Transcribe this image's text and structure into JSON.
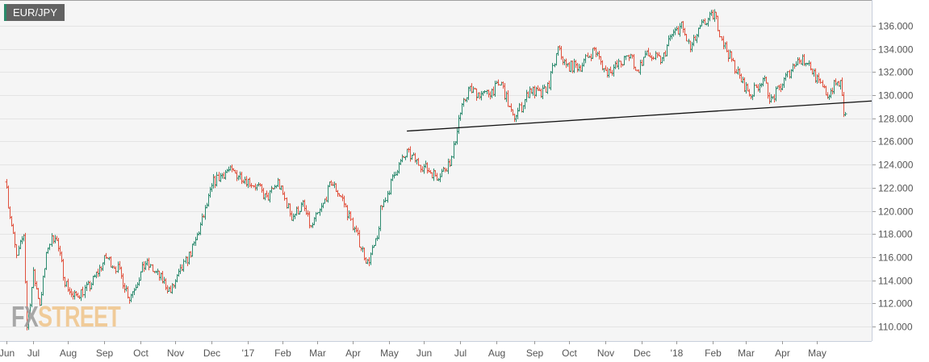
{
  "symbol_label": "EUR/JPY",
  "logo": {
    "part1": "FX",
    "part2": "STREET"
  },
  "colors": {
    "up": "#2b8a6e",
    "down": "#e0503c",
    "grid": "#e4e4e4",
    "plot_bg": "#f5f5f5",
    "trendline": "#111111"
  },
  "chart_data": {
    "type": "ohlc",
    "title": "EUR/JPY",
    "x_unit": "trading day index from Jun 1 2016",
    "xlim": [
      -4,
      523
    ],
    "ylim": [
      108.75,
      138.23
    ],
    "y_ticks": [
      "110.000",
      "112.000",
      "114.000",
      "116.000",
      "118.000",
      "120.000",
      "122.000",
      "124.000",
      "126.000",
      "128.000",
      "130.000",
      "132.000",
      "134.000",
      "136.000"
    ],
    "x_ticks": [
      {
        "label": "Jun",
        "day": 0
      },
      {
        "label": "Jul",
        "day": 16
      },
      {
        "label": "Aug",
        "day": 37
      },
      {
        "label": "Sep",
        "day": 59
      },
      {
        "label": "Oct",
        "day": 81
      },
      {
        "label": "Nov",
        "day": 102
      },
      {
        "label": "Dec",
        "day": 124
      },
      {
        "label": "'17",
        "day": 146
      },
      {
        "label": "Feb",
        "day": 167
      },
      {
        "label": "Mar",
        "day": 188
      },
      {
        "label": "Apr",
        "day": 209
      },
      {
        "label": "May",
        "day": 231
      },
      {
        "label": "Jun",
        "day": 252
      },
      {
        "label": "Jul",
        "day": 274
      },
      {
        "label": "Aug",
        "day": 296
      },
      {
        "label": "Sep",
        "day": 319
      },
      {
        "label": "Oct",
        "day": 340
      },
      {
        "label": "Nov",
        "day": 362
      },
      {
        "label": "Dec",
        "day": 384
      },
      {
        "label": "'18",
        "day": 405
      },
      {
        "label": "Feb",
        "day": 427
      },
      {
        "label": "Mar",
        "day": 447
      },
      {
        "label": "Apr",
        "day": 469
      },
      {
        "label": "May",
        "day": 490
      }
    ],
    "price_path": [
      [
        0,
        122.5
      ],
      [
        1,
        120.5
      ],
      [
        6,
        116
      ],
      [
        10,
        118
      ],
      [
        12,
        110
      ],
      [
        16,
        114.5
      ],
      [
        20,
        112
      ],
      [
        25,
        117
      ],
      [
        29,
        118
      ],
      [
        35,
        114
      ],
      [
        40,
        112.5
      ],
      [
        50,
        113.5
      ],
      [
        60,
        116
      ],
      [
        67,
        115
      ],
      [
        74,
        112.5
      ],
      [
        84,
        115.5
      ],
      [
        94,
        114
      ],
      [
        99,
        113
      ],
      [
        106,
        115
      ],
      [
        113,
        117
      ],
      [
        120,
        120
      ],
      [
        125,
        122.5
      ],
      [
        133,
        123.5
      ],
      [
        142,
        123
      ],
      [
        152,
        122
      ],
      [
        157,
        121
      ],
      [
        164,
        122.5
      ],
      [
        172,
        119.5
      ],
      [
        179,
        120.5
      ],
      [
        184,
        118.5
      ],
      [
        191,
        120.5
      ],
      [
        196,
        122.5
      ],
      [
        203,
        121
      ],
      [
        211,
        118
      ],
      [
        218,
        115.5
      ],
      [
        224,
        117.5
      ],
      [
        226,
        120
      ],
      [
        235,
        123.5
      ],
      [
        242,
        125
      ],
      [
        250,
        124
      ],
      [
        260,
        123
      ],
      [
        264,
        123.5
      ],
      [
        269,
        124.5
      ],
      [
        273,
        128
      ],
      [
        279,
        130.5
      ],
      [
        289,
        130
      ],
      [
        299,
        131
      ],
      [
        306,
        128
      ],
      [
        311,
        129
      ],
      [
        316,
        130.5
      ],
      [
        323,
        130
      ],
      [
        328,
        131
      ],
      [
        333,
        134
      ],
      [
        338,
        132.5
      ],
      [
        347,
        132.5
      ],
      [
        355,
        134
      ],
      [
        362,
        132
      ],
      [
        369,
        132.5
      ],
      [
        377,
        133.5
      ],
      [
        381,
        132
      ],
      [
        386,
        133.5
      ],
      [
        396,
        133
      ],
      [
        401,
        135
      ],
      [
        408,
        136
      ],
      [
        413,
        134
      ],
      [
        420,
        136
      ],
      [
        428,
        137
      ],
      [
        433,
        134.5
      ],
      [
        438,
        133
      ],
      [
        445,
        131
      ],
      [
        450,
        130
      ],
      [
        457,
        131.5
      ],
      [
        462,
        129.5
      ],
      [
        469,
        131
      ],
      [
        477,
        133
      ],
      [
        484,
        133
      ],
      [
        491,
        131
      ],
      [
        496,
        130
      ],
      [
        501,
        131
      ],
      [
        504,
        131
      ],
      [
        506,
        128.5
      ],
      [
        507,
        128.2
      ]
    ],
    "trendline": [
      [
        242,
        126.9
      ],
      [
        523,
        129.5
      ]
    ],
    "grid": true
  }
}
